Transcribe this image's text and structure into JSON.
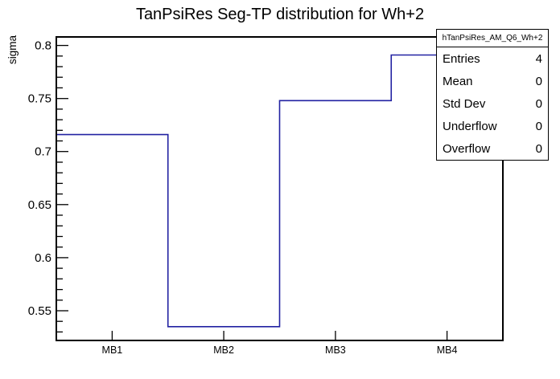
{
  "chart_data": {
    "type": "bar",
    "style": "step-histogram-outline",
    "title": "TanPsiRes Seg-TP distribution for Wh+2",
    "categories": [
      "MB1",
      "MB2",
      "MB3",
      "MB4"
    ],
    "values": [
      0.716,
      0.535,
      0.748,
      0.791
    ],
    "xlabel": "",
    "ylabel": "sigma",
    "ylim": [
      0.522,
      0.808
    ],
    "yticks_major": [
      0.55,
      0.6,
      0.65,
      0.7,
      0.75,
      0.8
    ],
    "ytick_labels": [
      "0.55",
      "0.6",
      "0.65",
      "0.7",
      "0.75",
      "0.8"
    ],
    "minor_tick_step": 0.01,
    "grid": false,
    "legend_position": "none",
    "line_color": "#2222a2",
    "axis_color": "#000000",
    "background_color": "#ffffff"
  },
  "stats_box": {
    "title": "hTanPsiRes_AM_Q6_Wh+2",
    "rows": [
      {
        "label": "Entries",
        "value": "4"
      },
      {
        "label": "Mean",
        "value": "0"
      },
      {
        "label": "Std Dev",
        "value": "0"
      },
      {
        "label": "Underflow",
        "value": "0"
      },
      {
        "label": "Overflow",
        "value": "0"
      }
    ]
  }
}
